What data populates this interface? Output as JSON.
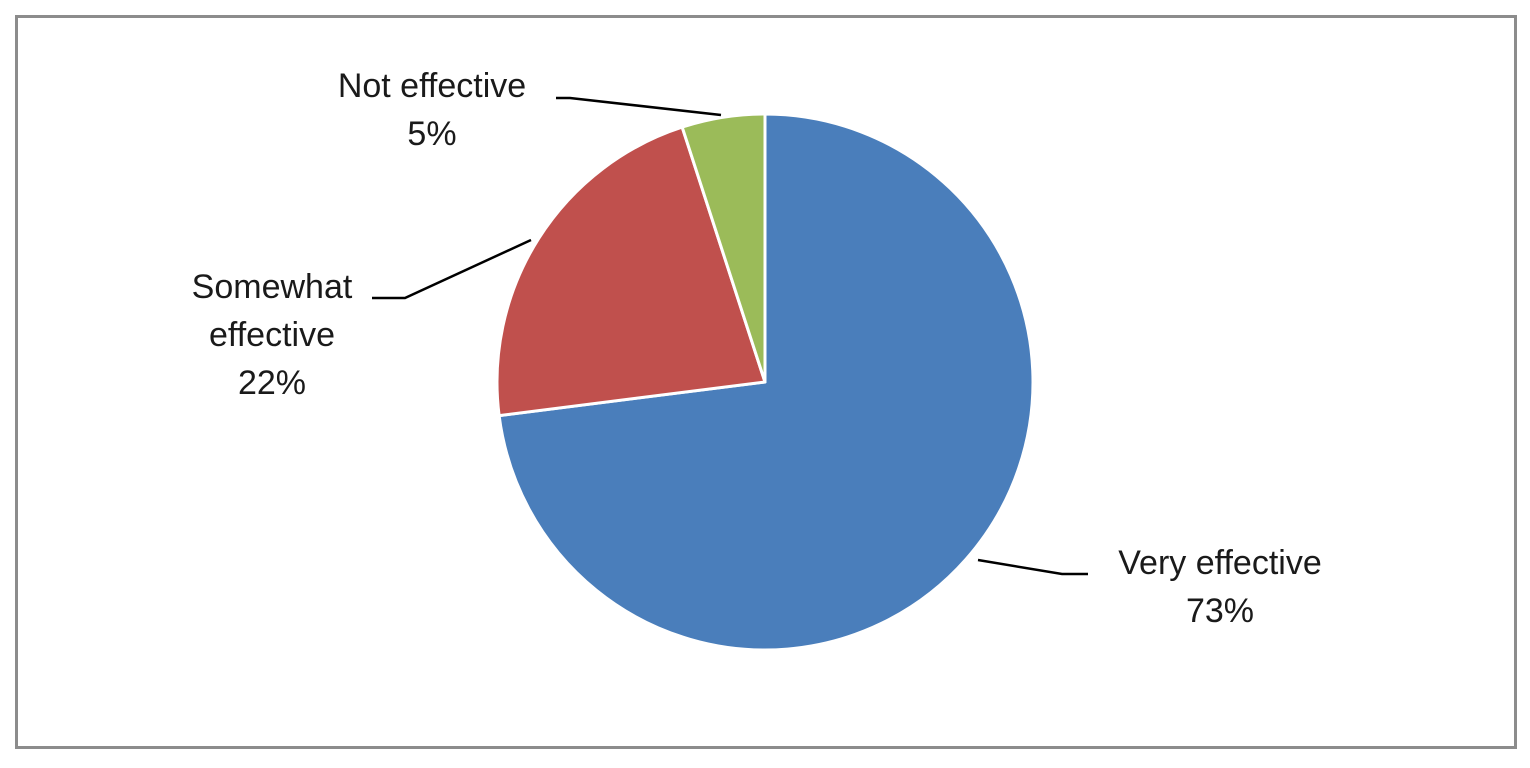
{
  "chart_data": {
    "type": "pie",
    "title": "",
    "slices": [
      {
        "label_lines": [
          "Very effective"
        ],
        "value_label": "73%",
        "value": 73,
        "color": "#4a7ebb"
      },
      {
        "label_lines": [
          "Somewhat",
          "effective"
        ],
        "value_label": "22%",
        "value": 22,
        "color": "#c0504d"
      },
      {
        "label_lines": [
          "Not effective"
        ],
        "value_label": "5%",
        "value": 5,
        "color": "#9bbb59"
      }
    ],
    "legend": "none",
    "data_labels": "outside-with-leader-lines"
  }
}
